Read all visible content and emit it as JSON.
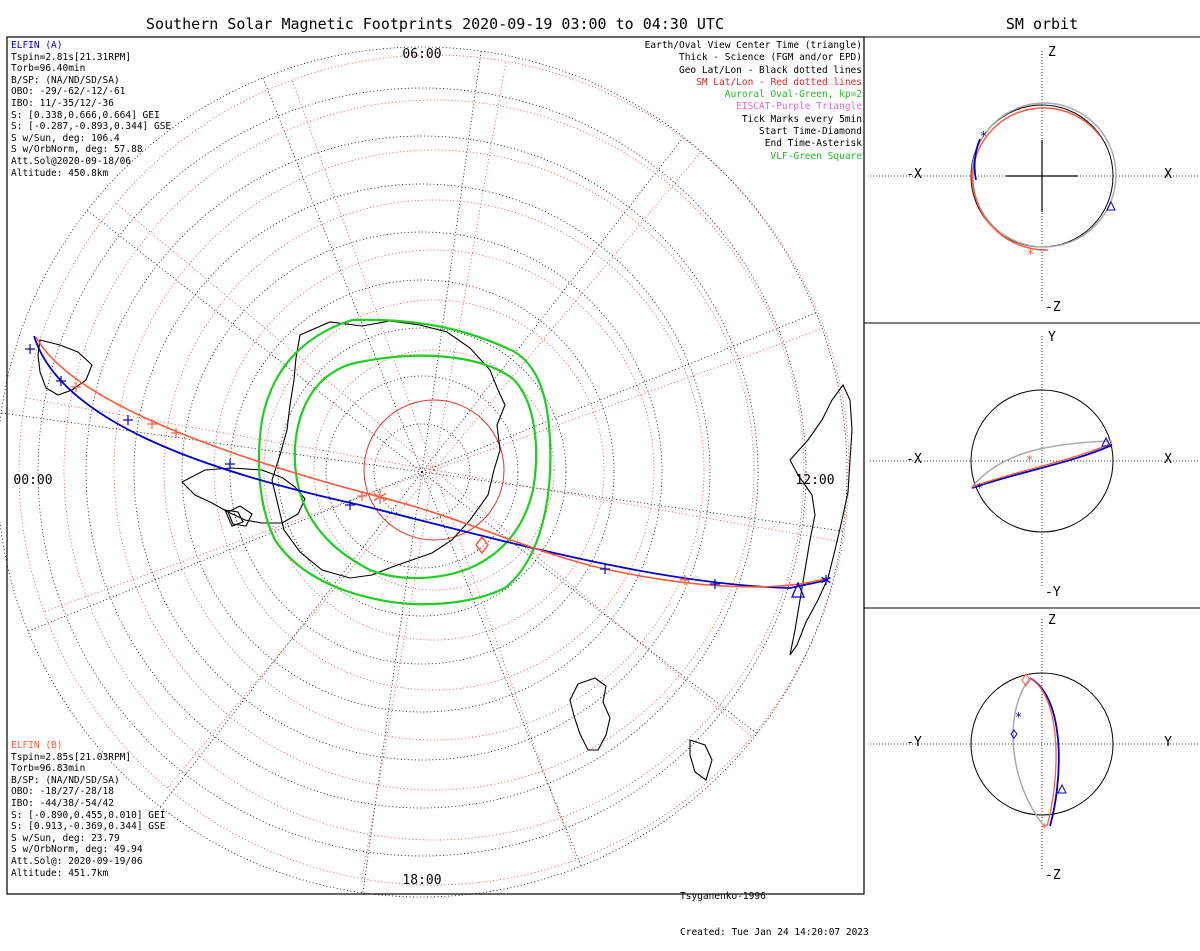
{
  "title": "Southern Solar Magnetic Footprints 2020-09-19 03:00 to 04:30 UTC",
  "sm_title": "SM orbit",
  "colors": {
    "elfin_a": "#0000cc",
    "elfin_b": "#ff5a3c",
    "oval": "#22cc22",
    "geo_grid": "#000000",
    "sm_grid": "#e83030",
    "eiscat": "#dd66dd",
    "orbit_gray": "#aaaaaa"
  },
  "map": {
    "time_labels": {
      "top": "06:00",
      "left": "00:00",
      "right": "12:00",
      "bottom": "18:00"
    }
  },
  "elfin_a": {
    "lines": [
      {
        "text": "ELFIN (A)",
        "color": "#0000cc"
      },
      {
        "text": "Tspin=2.81s[21.31RPM]"
      },
      {
        "text": "Torb=96.40min"
      },
      {
        "text": "B/SP: (NA/ND/SD/SA)"
      },
      {
        "text": "OBO: -29/-62/-12/-61"
      },
      {
        "text": "IBO: 11/-35/12/-36"
      },
      {
        "text": "S: [0.338,0.666,0.664] GEI"
      },
      {
        "text": "S: [-0.287,-0.893,0.344] GSE"
      },
      {
        "text": "S w/Sun, deg: 106.4"
      },
      {
        "text": "S w/OrbNorm, deg: 57.88"
      },
      {
        "text": "Att.Sol@2020-09-18/06"
      },
      {
        "text": "Altitude: 450.8km"
      }
    ]
  },
  "elfin_b": {
    "lines": [
      {
        "text": "ELFIN (B)",
        "color": "#ff5a3c"
      },
      {
        "text": "Tspin=2.85s[21.03RPM]"
      },
      {
        "text": "Torb=96.83min"
      },
      {
        "text": "B/SP: (NA/ND/SD/SA)"
      },
      {
        "text": "OBO: -18/27/-28/18"
      },
      {
        "text": "IBO: -44/38/-54/42"
      },
      {
        "text": "S: [-0.890,0.455,0.010] GEI"
      },
      {
        "text": "S: [0.913,-0.369,0.344] GSE"
      },
      {
        "text": "S w/Sun, deg: 23.79"
      },
      {
        "text": "S w/OrbNorm, deg: 49.94"
      },
      {
        "text": "Att.Sol@: 2020-09-19/06"
      },
      {
        "text": "Altitude: 451.7km"
      }
    ]
  },
  "legend": [
    {
      "text": "Earth/Oval View Center Time (triangle)",
      "color": "#000000"
    },
    {
      "text": "Thick - Science (FGM and/or EPD)",
      "color": "#000000"
    },
    {
      "text": "Geo Lat/Lon - Black dotted lines",
      "color": "#000000"
    },
    {
      "text": "SM Lat/Lon - Red dotted lines",
      "color": "#e82020"
    },
    {
      "text": "Auroral Oval-Green, kp=2",
      "color": "#22bb22"
    },
    {
      "text": "EISCAT-Purple Triangle",
      "color": "#dd66dd"
    },
    {
      "text": "Tick Marks every 5min",
      "color": "#000000"
    },
    {
      "text": "Start Time-Diamond",
      "color": "#000000"
    },
    {
      "text": "End Time-Asterisk",
      "color": "#000000"
    },
    {
      "text": "VLF-Green Square",
      "color": "#22bb22"
    }
  ],
  "credit": {
    "model": "Tsyganenko-1996",
    "created": "Created: Tue Jan 24 14:20:07 2023"
  },
  "sm_panels": [
    {
      "top_label": "Z",
      "bottom_label": "-Z",
      "left_label": "-X",
      "right_label": "X"
    },
    {
      "top_label": "Y",
      "bottom_label": "-Y",
      "left_label": "-X",
      "right_label": "X"
    },
    {
      "top_label": "Z",
      "bottom_label": "-Z",
      "left_label": "-Y",
      "right_label": "Y"
    }
  ]
}
